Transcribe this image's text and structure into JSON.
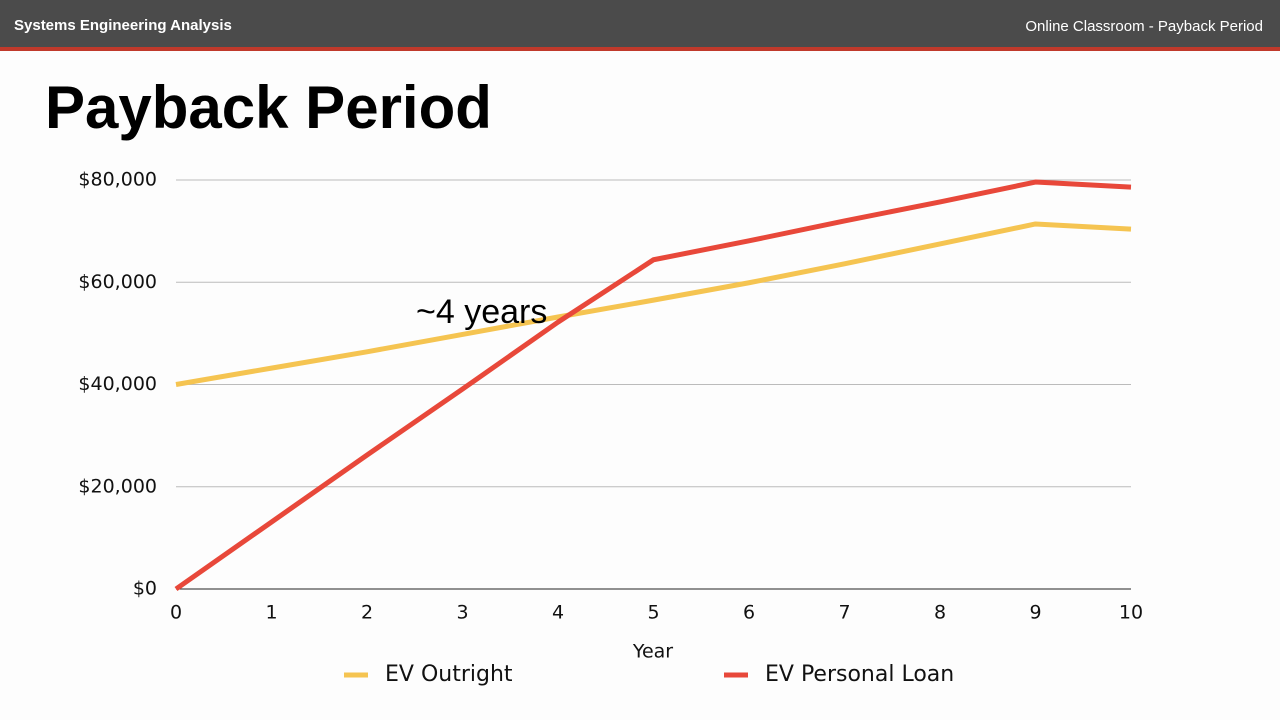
{
  "header": {
    "left": "Systems Engineering Analysis",
    "right": "Online Classroom - Payback Period"
  },
  "chart_data": {
    "type": "line",
    "title": "Payback Period",
    "x": [
      0,
      1,
      2,
      3,
      4,
      5,
      6,
      7,
      8,
      9,
      10
    ],
    "xlim": [
      0,
      10
    ],
    "xticks": [
      0,
      1,
      2,
      3,
      4,
      5,
      6,
      7,
      8,
      9,
      10
    ],
    "x_label": "Year",
    "ylim": [
      0,
      80000
    ],
    "yticks": [
      {
        "value": 0,
        "label": "$0"
      },
      {
        "value": 20000,
        "label": "$20,000"
      },
      {
        "value": 40000,
        "label": "$40,000"
      },
      {
        "value": 60000,
        "label": "$60,000"
      },
      {
        "value": 80000,
        "label": "$80,000"
      }
    ],
    "grid": true,
    "annotation": "~4 years",
    "series": [
      {
        "name": "EV Outright",
        "color": "#f5c451",
        "values": [
          40000,
          43200,
          46400,
          49800,
          53200,
          56500,
          59900,
          63600,
          67500,
          71400,
          70400
        ]
      },
      {
        "name": "EV Personal Loan",
        "color": "#e8483a",
        "values": [
          0,
          13100,
          26200,
          39100,
          52200,
          64400,
          68100,
          72000,
          75700,
          79600,
          78600
        ]
      }
    ]
  }
}
